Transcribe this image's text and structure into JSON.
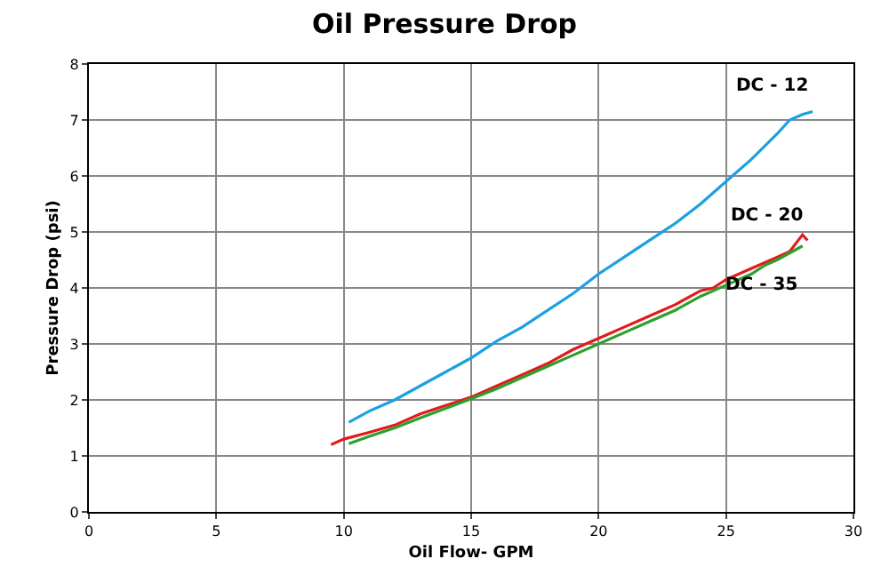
{
  "chart_data": {
    "type": "line",
    "title": "Oil Pressure Drop",
    "xlabel": "Oil Flow- GPM",
    "ylabel": "Pressure Drop (psi)",
    "xlim": [
      0,
      30
    ],
    "xticks": [
      0,
      5,
      10,
      15,
      20,
      25,
      30
    ],
    "ylim": [
      0,
      8
    ],
    "yticks": [
      0,
      1,
      2,
      3,
      4,
      5,
      6,
      7,
      8
    ],
    "grid": true,
    "legend": false,
    "marker": "none",
    "line_style": "solid",
    "series": [
      {
        "name": "DC - 12",
        "color": "#1ba1e2",
        "x": [
          10.2,
          11,
          12,
          13,
          14,
          15,
          16,
          17,
          18,
          19,
          20,
          21,
          22,
          23,
          24,
          25,
          26,
          27,
          27.5,
          28,
          28.4
        ],
        "values": [
          1.6,
          1.8,
          2.0,
          2.25,
          2.5,
          2.75,
          3.05,
          3.3,
          3.6,
          3.9,
          4.25,
          4.55,
          4.85,
          5.15,
          5.5,
          5.9,
          6.3,
          6.75,
          7.0,
          7.1,
          7.15
        ]
      },
      {
        "name": "DC - 20",
        "color": "#e31a1c",
        "x": [
          9.5,
          10,
          11,
          12,
          13,
          14,
          15,
          16,
          17,
          18,
          19,
          20,
          21,
          22,
          23,
          24,
          24.5,
          25,
          26,
          27,
          27.5,
          28,
          28.2
        ],
        "values": [
          1.2,
          1.3,
          1.42,
          1.55,
          1.75,
          1.9,
          2.05,
          2.25,
          2.45,
          2.65,
          2.9,
          3.1,
          3.3,
          3.5,
          3.7,
          3.95,
          4.0,
          4.15,
          4.35,
          4.55,
          4.65,
          4.95,
          4.85
        ]
      },
      {
        "name": "DC - 35",
        "color": "#2ca02c",
        "x": [
          10.2,
          11,
          12,
          13,
          14,
          15,
          16,
          17,
          18,
          19,
          20,
          21,
          22,
          23,
          24,
          25,
          26,
          26.5,
          27,
          28
        ],
        "values": [
          1.22,
          1.35,
          1.5,
          1.68,
          1.85,
          2.02,
          2.2,
          2.4,
          2.6,
          2.8,
          3.0,
          3.2,
          3.4,
          3.6,
          3.85,
          4.05,
          4.25,
          4.4,
          4.5,
          4.75
        ]
      }
    ]
  }
}
